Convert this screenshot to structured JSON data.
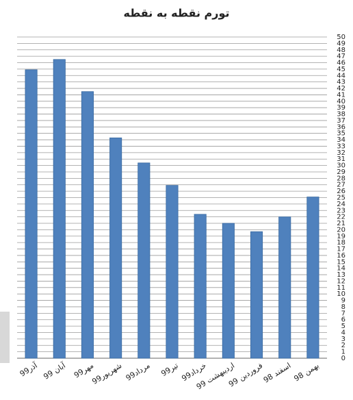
{
  "chart_data": {
    "type": "bar",
    "title": "تورم نقطه به نقطه",
    "categories": [
      "آذر99",
      "آبان 99",
      "مهر99",
      "شهریور99",
      "مرداد99",
      "تیر99",
      "خرداد99",
      "اردیبهشت 99",
      "فروردین 99",
      "اسفند 98",
      "بهمن 98"
    ],
    "values": [
      44.9,
      46.5,
      41.5,
      34.3,
      30.4,
      26.9,
      22.4,
      21.0,
      19.7,
      22.0,
      25.1
    ],
    "color": "#4f81bd",
    "ylim": [
      0,
      50
    ],
    "yticks": [
      0,
      1,
      2,
      3,
      4,
      5,
      6,
      7,
      8,
      9,
      10,
      11,
      12,
      13,
      14,
      15,
      16,
      17,
      18,
      19,
      20,
      21,
      22,
      23,
      24,
      25,
      26,
      27,
      28,
      29,
      30,
      31,
      32,
      33,
      34,
      35,
      36,
      37,
      38,
      39,
      40,
      41,
      42,
      43,
      44,
      45,
      46,
      47,
      48,
      49,
      50
    ],
    "grid": true
  }
}
